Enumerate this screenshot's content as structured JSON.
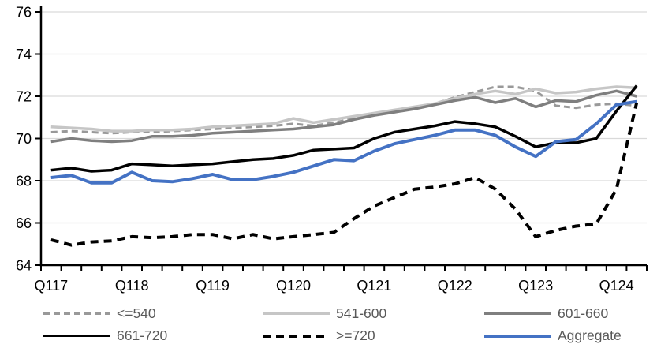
{
  "chart_data": {
    "type": "line",
    "title": "",
    "x_tick_labels": [
      "Q117",
      "Q118",
      "Q119",
      "Q120",
      "Q121",
      "Q122",
      "Q123",
      "Q124"
    ],
    "categories": [
      "Q117",
      "Q217",
      "Q317",
      "Q417",
      "Q118",
      "Q218",
      "Q318",
      "Q418",
      "Q119",
      "Q219",
      "Q319",
      "Q419",
      "Q120",
      "Q220",
      "Q320",
      "Q420",
      "Q121",
      "Q221",
      "Q321",
      "Q421",
      "Q122",
      "Q222",
      "Q322",
      "Q422",
      "Q123",
      "Q223",
      "Q323",
      "Q423",
      "Q124",
      "Q224"
    ],
    "ylim": [
      64,
      76
    ],
    "ytick_step": 2,
    "grid": "horizontal",
    "legend_position": "bottom",
    "axis_color": "#000000",
    "gridline_color": "#d9d9d9",
    "legend_text_color": "#595959",
    "background_color": "#ffffff",
    "series": [
      {
        "name": "<=540",
        "color": "#999999",
        "dash": "8 5",
        "width": 3,
        "values": [
          70.3,
          70.35,
          70.3,
          70.25,
          70.3,
          70.3,
          70.35,
          70.4,
          70.45,
          70.5,
          70.55,
          70.6,
          70.7,
          70.6,
          70.75,
          70.95,
          71.15,
          71.3,
          71.45,
          71.65,
          71.95,
          72.2,
          72.45,
          72.45,
          72.25,
          71.55,
          71.45,
          71.6,
          71.65,
          71.55
        ]
      },
      {
        "name": "541-600",
        "color": "#c6c6c6",
        "dash": "",
        "width": 3.5,
        "values": [
          70.55,
          70.5,
          70.45,
          70.35,
          70.35,
          70.4,
          70.4,
          70.45,
          70.55,
          70.6,
          70.65,
          70.7,
          70.95,
          70.75,
          70.9,
          71.05,
          71.2,
          71.35,
          71.5,
          71.65,
          71.9,
          72.1,
          72.25,
          72.1,
          72.35,
          72.15,
          72.2,
          72.35,
          72.45,
          72.4
        ]
      },
      {
        "name": "601-660",
        "color": "#7f7f7f",
        "dash": "",
        "width": 3.5,
        "values": [
          69.85,
          70.0,
          69.9,
          69.85,
          69.9,
          70.1,
          70.1,
          70.15,
          70.25,
          70.3,
          70.35,
          70.4,
          70.45,
          70.55,
          70.65,
          70.9,
          71.1,
          71.25,
          71.4,
          71.6,
          71.8,
          71.95,
          71.7,
          71.9,
          71.5,
          71.8,
          71.75,
          72.05,
          72.25,
          72.0
        ]
      },
      {
        "name": "661-720",
        "color": "#000000",
        "dash": "",
        "width": 3.5,
        "values": [
          68.5,
          68.6,
          68.45,
          68.5,
          68.8,
          68.75,
          68.7,
          68.75,
          68.8,
          68.9,
          69.0,
          69.05,
          69.2,
          69.45,
          69.5,
          69.55,
          70.0,
          70.3,
          70.45,
          70.6,
          70.8,
          70.7,
          70.55,
          70.1,
          69.6,
          69.8,
          69.8,
          70.0,
          71.3,
          72.5
        ]
      },
      {
        "name": ">=720",
        "color": "#000000",
        "dash": "10 7",
        "width": 4,
        "values": [
          65.2,
          64.95,
          65.1,
          65.15,
          65.35,
          65.3,
          65.35,
          65.45,
          65.45,
          65.25,
          65.45,
          65.25,
          65.35,
          65.45,
          65.55,
          66.2,
          66.8,
          67.2,
          67.6,
          67.7,
          67.85,
          68.15,
          67.6,
          66.65,
          65.35,
          65.65,
          65.85,
          65.95,
          67.6,
          71.7
        ]
      },
      {
        "name": "Aggregate",
        "color": "#4472c4",
        "dash": "",
        "width": 4,
        "values": [
          68.15,
          68.25,
          67.9,
          67.9,
          68.4,
          68.0,
          67.95,
          68.1,
          68.3,
          68.05,
          68.05,
          68.2,
          68.4,
          68.7,
          69.0,
          68.95,
          69.4,
          69.75,
          69.95,
          70.15,
          70.4,
          70.4,
          70.15,
          69.6,
          69.15,
          69.85,
          69.95,
          70.7,
          71.6,
          71.75
        ]
      }
    ]
  }
}
